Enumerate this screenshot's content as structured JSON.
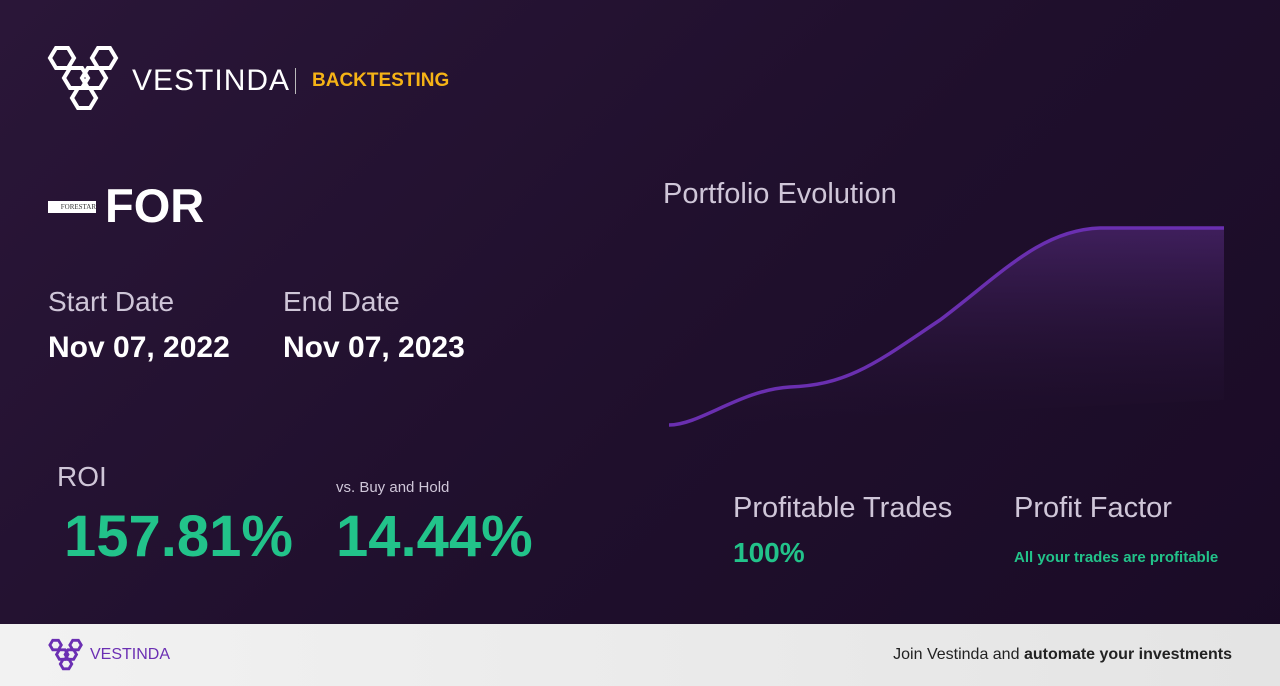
{
  "header": {
    "brand": "VESTINDA",
    "section": "BACKTESTING"
  },
  "asset": {
    "logo_text": "FORESTAR",
    "ticker": "FOR"
  },
  "dates": {
    "start_label": "Start Date",
    "start_value": "Nov 07, 2022",
    "end_label": "End Date",
    "end_value": "Nov 07, 2023"
  },
  "roi": {
    "label": "ROI",
    "value": "157.81%",
    "compare_label": "vs. Buy and Hold",
    "compare_value": "14.44%"
  },
  "chart": {
    "title": "Portfolio Evolution"
  },
  "stats": {
    "trades_label": "Profitable Trades",
    "trades_value": "100%",
    "factor_label": "Profit Factor",
    "factor_value": "All your trades are profitable"
  },
  "footer": {
    "brand": "VESTINDA",
    "cta_plain": "Join Vestinda and",
    "cta_bold": "automate your investments"
  }
}
